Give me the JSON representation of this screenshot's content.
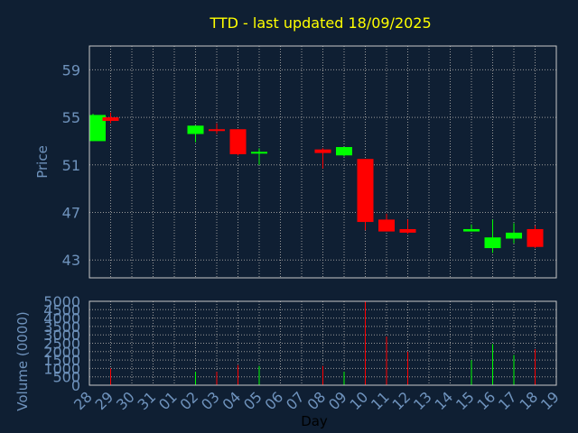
{
  "title": "TTD - last updated 18/09/2025",
  "colors": {
    "background": "#0f1f33",
    "title": "#ffff00",
    "axis_text": "#6f93bd",
    "axis_line": "#c8c8c8",
    "grid": "#9a9a9a",
    "up": "#00ff00",
    "down": "#ff0000"
  },
  "chart_data": [
    {
      "type": "candlestick",
      "title": "TTD - last updated 18/09/2025",
      "ylabel": "Price",
      "yticks": [
        43,
        47,
        51,
        55,
        59
      ],
      "ylim": [
        41.5,
        61
      ],
      "grid": true,
      "categories": [
        "28",
        "29",
        "30",
        "31",
        "01",
        "02",
        "03",
        "04",
        "05",
        "06",
        "07",
        "08",
        "09",
        "10",
        "11",
        "12",
        "13",
        "14",
        "15",
        "16",
        "17",
        "18",
        "19"
      ],
      "candles": [
        {
          "day": "28",
          "open": 53.0,
          "high": 55.3,
          "low": 53.0,
          "close": 55.2
        },
        {
          "day": "29",
          "open": 55.0,
          "high": 55.4,
          "low": 54.5,
          "close": 54.7
        },
        {
          "day": "02",
          "open": 53.6,
          "high": 54.3,
          "low": 52.9,
          "close": 54.3
        },
        {
          "day": "03",
          "open": 54.0,
          "high": 54.5,
          "low": 53.6,
          "close": 53.9
        },
        {
          "day": "04",
          "open": 54.0,
          "high": 54.0,
          "low": 51.8,
          "close": 51.9
        },
        {
          "day": "05",
          "open": 52.0,
          "high": 52.4,
          "low": 51.0,
          "close": 52.1
        },
        {
          "day": "08",
          "open": 52.3,
          "high": 52.4,
          "low": 50.7,
          "close": 52.0
        },
        {
          "day": "09",
          "open": 51.8,
          "high": 52.5,
          "low": 51.7,
          "close": 52.5
        },
        {
          "day": "10",
          "open": 51.5,
          "high": 51.5,
          "low": 45.5,
          "close": 46.2
        },
        {
          "day": "11",
          "open": 46.4,
          "high": 46.9,
          "low": 45.4,
          "close": 45.4
        },
        {
          "day": "12",
          "open": 45.6,
          "high": 46.4,
          "low": 45.2,
          "close": 45.3
        },
        {
          "day": "15",
          "open": 45.4,
          "high": 46.0,
          "low": 45.4,
          "close": 45.6
        },
        {
          "day": "16",
          "open": 44.0,
          "high": 46.4,
          "low": 43.6,
          "close": 44.9
        },
        {
          "day": "17",
          "open": 44.8,
          "high": 46.1,
          "low": 44.4,
          "close": 45.3
        },
        {
          "day": "18",
          "open": 45.6,
          "high": 45.9,
          "low": 44.0,
          "close": 44.1
        }
      ]
    },
    {
      "type": "bar",
      "xlabel": "Day",
      "ylabel": "Volume (0000)",
      "yticks": [
        0,
        500,
        1000,
        1500,
        2000,
        2500,
        3000,
        3500,
        4000,
        4500,
        5000
      ],
      "ylim": [
        0,
        5000
      ],
      "grid": true,
      "categories": [
        "28",
        "29",
        "30",
        "31",
        "01",
        "02",
        "03",
        "04",
        "05",
        "06",
        "07",
        "08",
        "09",
        "10",
        "11",
        "12",
        "13",
        "14",
        "15",
        "16",
        "17",
        "18",
        "19"
      ],
      "bars": [
        {
          "day": "29",
          "value": 1000,
          "direction": "down"
        },
        {
          "day": "02",
          "value": 800,
          "direction": "up"
        },
        {
          "day": "03",
          "value": 800,
          "direction": "down"
        },
        {
          "day": "04",
          "value": 1200,
          "direction": "down"
        },
        {
          "day": "05",
          "value": 1150,
          "direction": "up"
        },
        {
          "day": "08",
          "value": 1150,
          "direction": "down"
        },
        {
          "day": "09",
          "value": 800,
          "direction": "up"
        },
        {
          "day": "10",
          "value": 5000,
          "direction": "down"
        },
        {
          "day": "11",
          "value": 2900,
          "direction": "down"
        },
        {
          "day": "12",
          "value": 2000,
          "direction": "down"
        },
        {
          "day": "15",
          "value": 1500,
          "direction": "up"
        },
        {
          "day": "16",
          "value": 2450,
          "direction": "up"
        },
        {
          "day": "17",
          "value": 1800,
          "direction": "up"
        },
        {
          "day": "18",
          "value": 2150,
          "direction": "down"
        }
      ]
    }
  ]
}
